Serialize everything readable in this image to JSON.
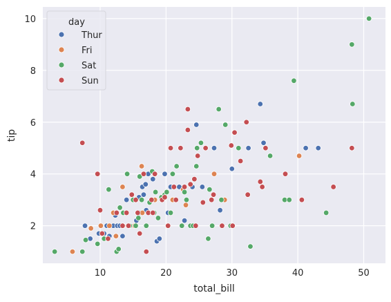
{
  "chart_data": {
    "type": "scatter",
    "xlabel": "total_bill",
    "ylabel": "tip",
    "xlim": [
      1.3,
      53.3
    ],
    "ylim": [
      0.55,
      10.45
    ],
    "xticks": [
      10,
      20,
      30,
      40,
      50
    ],
    "yticks": [
      2,
      4,
      6,
      8,
      10
    ],
    "grid": true,
    "background": "#eaeaf2",
    "legend": {
      "title": "day",
      "placement": "top-left"
    },
    "series": [
      {
        "name": "Thur",
        "color": "#4c72b0",
        "points": [
          [
            7.7,
            2.0
          ],
          [
            8.5,
            1.5
          ],
          [
            9.8,
            1.7
          ],
          [
            10.3,
            1.7
          ],
          [
            10.6,
            1.7
          ],
          [
            11.0,
            2.0
          ],
          [
            11.4,
            1.6
          ],
          [
            12.0,
            2.0
          ],
          [
            12.3,
            2.4
          ],
          [
            12.6,
            2.0
          ],
          [
            13.0,
            2.0
          ],
          [
            13.4,
            1.6
          ],
          [
            14.0,
            3.0
          ],
          [
            14.5,
            2.0
          ],
          [
            15.0,
            3.0
          ],
          [
            15.5,
            2.2
          ],
          [
            16.0,
            2.5
          ],
          [
            16.4,
            3.5
          ],
          [
            16.6,
            3.2
          ],
          [
            17.0,
            2.6
          ],
          [
            17.3,
            4.0
          ],
          [
            17.8,
            3.0
          ],
          [
            18.0,
            3.8
          ],
          [
            18.3,
            4.0
          ],
          [
            18.6,
            1.4
          ],
          [
            19.0,
            1.5
          ],
          [
            19.8,
            4.0
          ],
          [
            20.3,
            2.5
          ],
          [
            20.7,
            3.5
          ],
          [
            21.0,
            3.0
          ],
          [
            22.0,
            3.5
          ],
          [
            22.8,
            2.2
          ],
          [
            24.0,
            3.5
          ],
          [
            24.6,
            5.9
          ],
          [
            25.5,
            3.5
          ],
          [
            27.3,
            5.0
          ],
          [
            28.2,
            2.6
          ],
          [
            30.0,
            4.2
          ],
          [
            32.5,
            5.0
          ],
          [
            34.3,
            6.7
          ],
          [
            34.8,
            5.2
          ],
          [
            41.2,
            5.0
          ],
          [
            43.1,
            5.0
          ],
          [
            16.9,
            3.6
          ],
          [
            15.9,
            3.1
          ]
        ]
      },
      {
        "name": "Fri",
        "color": "#dd8452",
        "points": [
          [
            5.8,
            1.0
          ],
          [
            8.6,
            1.9
          ],
          [
            10.1,
            2.0
          ],
          [
            11.4,
            2.0
          ],
          [
            12.0,
            2.5
          ],
          [
            13.4,
            3.5
          ],
          [
            15.2,
            2.0
          ],
          [
            16.3,
            4.3
          ],
          [
            16.4,
            2.5
          ],
          [
            18.3,
            3.0
          ],
          [
            21.0,
            3.0
          ],
          [
            22.6,
            3.4
          ],
          [
            23.0,
            2.8
          ],
          [
            27.3,
            4.0
          ],
          [
            28.9,
            3.0
          ],
          [
            40.2,
            4.7
          ],
          [
            13.5,
            2.0
          ],
          [
            12.4,
            1.6
          ]
        ]
      },
      {
        "name": "Sat",
        "color": "#55a868",
        "points": [
          [
            3.1,
            1.0
          ],
          [
            7.3,
            1.0
          ],
          [
            7.8,
            1.45
          ],
          [
            9.6,
            1.3
          ],
          [
            10.6,
            1.5
          ],
          [
            11.3,
            3.4
          ],
          [
            12.5,
            1.0
          ],
          [
            12.8,
            1.1
          ],
          [
            13.0,
            2.7
          ],
          [
            13.5,
            2.5
          ],
          [
            14.1,
            4.0
          ],
          [
            14.5,
            2.0
          ],
          [
            15.0,
            3.0
          ],
          [
            15.4,
            2.0
          ],
          [
            15.8,
            2.3
          ],
          [
            16.3,
            3.0
          ],
          [
            17.0,
            2.0
          ],
          [
            17.5,
            2.9
          ],
          [
            17.9,
            4.1
          ],
          [
            18.2,
            2.5
          ],
          [
            18.4,
            3.3
          ],
          [
            18.8,
            2.3
          ],
          [
            19.3,
            3.1
          ],
          [
            19.8,
            3.2
          ],
          [
            20.1,
            3.3
          ],
          [
            20.3,
            2.0
          ],
          [
            20.7,
            2.5
          ],
          [
            21.0,
            4.0
          ],
          [
            21.6,
            4.3
          ],
          [
            22.4,
            2.0
          ],
          [
            23.1,
            3.0
          ],
          [
            23.7,
            2.0
          ],
          [
            24.1,
            2.0
          ],
          [
            24.6,
            4.3
          ],
          [
            24.7,
            5.0
          ],
          [
            25.3,
            5.2
          ],
          [
            26.4,
            1.5
          ],
          [
            26.6,
            3.4
          ],
          [
            27.0,
            2.0
          ],
          [
            28.0,
            6.5
          ],
          [
            28.4,
            3.0
          ],
          [
            29.0,
            5.9
          ],
          [
            29.8,
            2.0
          ],
          [
            30.1,
            2.0
          ],
          [
            31.0,
            5.0
          ],
          [
            32.8,
            1.2
          ],
          [
            34.6,
            3.5
          ],
          [
            35.8,
            4.7
          ],
          [
            38.0,
            3.0
          ],
          [
            38.7,
            3.0
          ],
          [
            39.4,
            7.6
          ],
          [
            44.3,
            2.5
          ],
          [
            48.2,
            9.0
          ],
          [
            48.3,
            6.7
          ],
          [
            50.8,
            10.0
          ],
          [
            22.8,
            3.3
          ],
          [
            16.0,
            3.9
          ]
        ]
      },
      {
        "name": "Sun",
        "color": "#c44e52",
        "points": [
          [
            7.3,
            5.2
          ],
          [
            9.6,
            4.0
          ],
          [
            10.0,
            2.6
          ],
          [
            10.3,
            1.7
          ],
          [
            11.2,
            1.5
          ],
          [
            12.5,
            2.5
          ],
          [
            13.4,
            2.0
          ],
          [
            14.0,
            2.5
          ],
          [
            14.3,
            2.0
          ],
          [
            14.8,
            3.2
          ],
          [
            15.4,
            3.0
          ],
          [
            16.0,
            1.7
          ],
          [
            16.6,
            4.0
          ],
          [
            17.0,
            1.0
          ],
          [
            17.3,
            2.5
          ],
          [
            17.8,
            3.0
          ],
          [
            18.0,
            2.5
          ],
          [
            18.3,
            4.0
          ],
          [
            19.4,
            3.0
          ],
          [
            19.8,
            3.1
          ],
          [
            20.3,
            2.0
          ],
          [
            20.7,
            5.0
          ],
          [
            21.2,
            3.5
          ],
          [
            21.5,
            3.0
          ],
          [
            22.2,
            5.0
          ],
          [
            22.8,
            3.5
          ],
          [
            23.3,
            6.5
          ],
          [
            23.3,
            5.7
          ],
          [
            23.7,
            3.6
          ],
          [
            24.3,
            3.8
          ],
          [
            24.5,
            2.0
          ],
          [
            24.8,
            4.7
          ],
          [
            25.6,
            2.9
          ],
          [
            26.0,
            5.0
          ],
          [
            27.2,
            3.2
          ],
          [
            28.5,
            2.0
          ],
          [
            29.9,
            5.1
          ],
          [
            30.4,
            5.6
          ],
          [
            31.3,
            4.5
          ],
          [
            32.2,
            6.0
          ],
          [
            32.4,
            3.2
          ],
          [
            34.3,
            3.7
          ],
          [
            34.6,
            3.5
          ],
          [
            35.1,
            5.0
          ],
          [
            38.1,
            4.0
          ],
          [
            40.6,
            3.0
          ],
          [
            45.4,
            3.5
          ],
          [
            48.2,
            5.0
          ],
          [
            30.1,
            2.0
          ],
          [
            15.7,
            2.5
          ],
          [
            26.9,
            3.0
          ]
        ]
      }
    ]
  }
}
